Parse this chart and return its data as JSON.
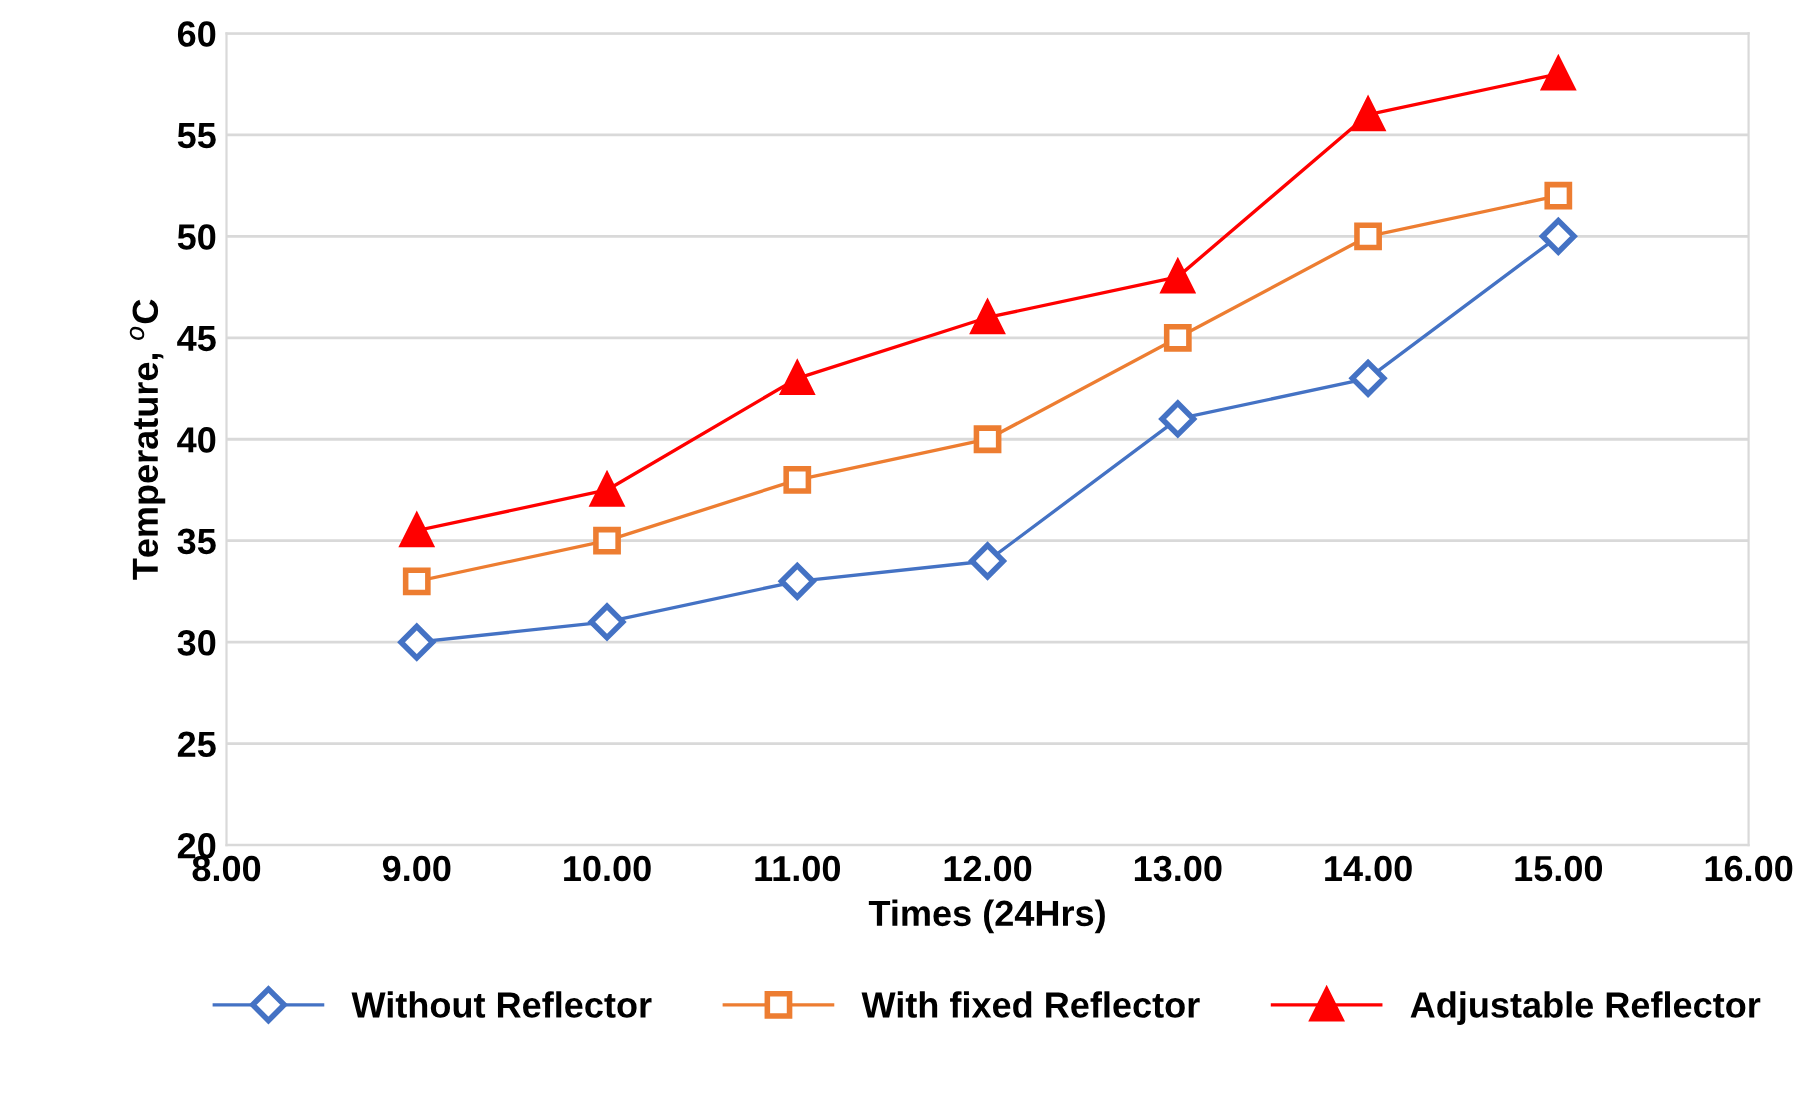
{
  "chart_data": {
    "type": "line",
    "xlabel": "Times (24Hrs)",
    "ylabel": "Temperature, $^{o}$C",
    "x": [
      9,
      10,
      11,
      12,
      13,
      14,
      15
    ],
    "series": [
      {
        "name": "Without Reflector",
        "color": "#4472c4",
        "marker": "diamond",
        "values": [
          30,
          31,
          33,
          34,
          41,
          43,
          50
        ]
      },
      {
        "name": "With fixed Reflector",
        "color": "#ed7d31",
        "marker": "square",
        "values": [
          33,
          35,
          38,
          40,
          45,
          50,
          52
        ]
      },
      {
        "name": "Adjustable Reflector",
        "color": "#ff0000",
        "marker": "triangle",
        "values": [
          35.5,
          37.5,
          43,
          46,
          48,
          56,
          58
        ]
      }
    ],
    "xlim": [
      8,
      16
    ],
    "xticks": [
      {
        "value": 8,
        "label": "8.00"
      },
      {
        "value": 9,
        "label": "9.00"
      },
      {
        "value": 10,
        "label": "10.00"
      },
      {
        "value": 11,
        "label": "11.00"
      },
      {
        "value": 12,
        "label": "12.00"
      },
      {
        "value": 13,
        "label": "13.00"
      },
      {
        "value": 14,
        "label": "14.00"
      },
      {
        "value": 15,
        "label": "15.00"
      },
      {
        "value": 16,
        "label": "16.00"
      }
    ],
    "ylim": [
      20,
      60
    ],
    "yticks": [
      20,
      25,
      30,
      35,
      40,
      45,
      50,
      55,
      60
    ],
    "grid": "y",
    "legend": "bottom",
    "line_style": "solid"
  }
}
